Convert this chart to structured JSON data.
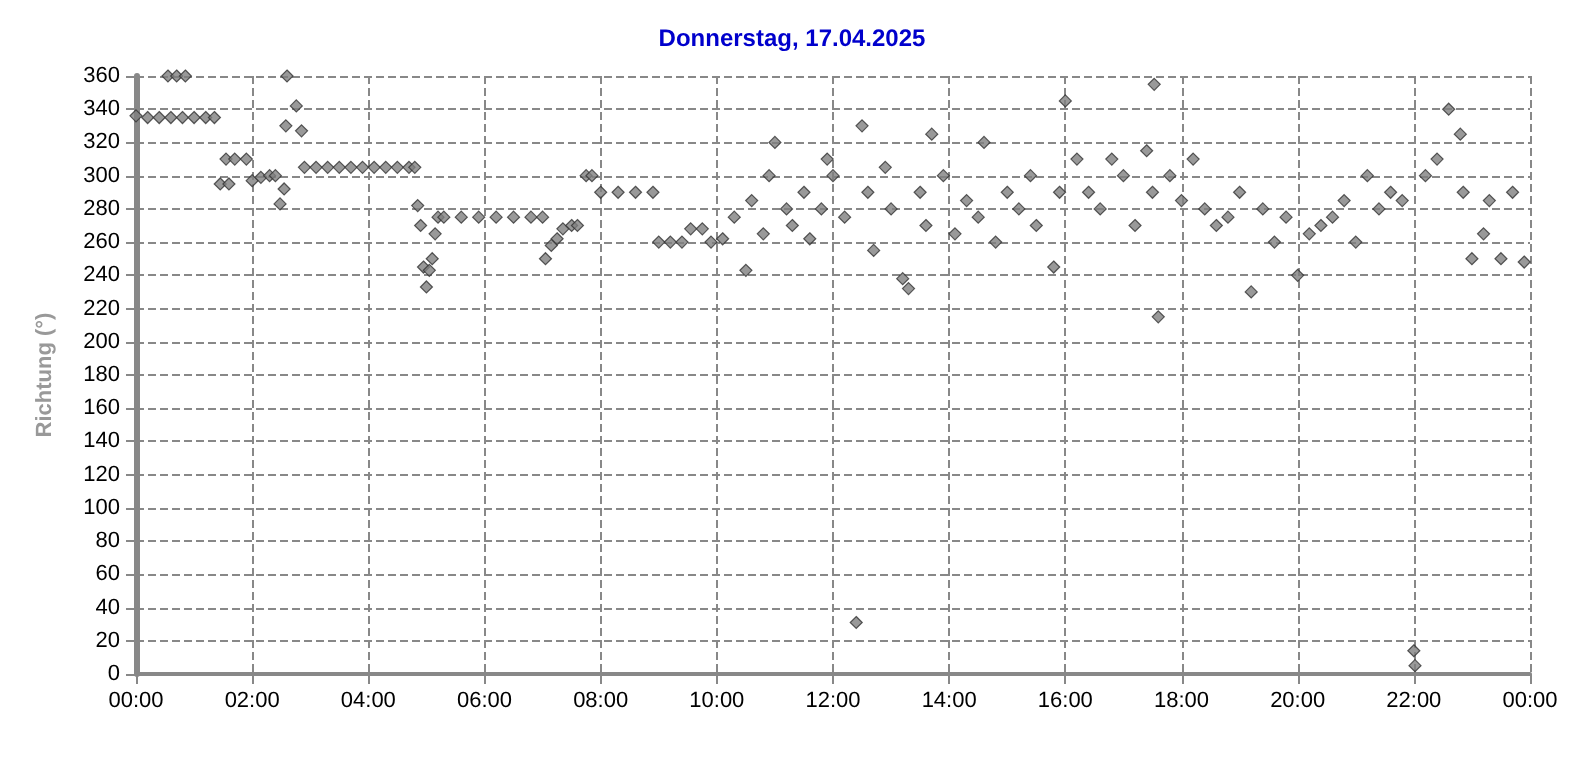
{
  "chart_data": {
    "type": "scatter",
    "title": "Donnerstag, 17.04.2025",
    "ylabel": "Richtung (°)",
    "marker": "diamond",
    "grid": true,
    "xlim": [
      0,
      24
    ],
    "xticks": [
      {
        "value": 0,
        "label": "00:00"
      },
      {
        "value": 2,
        "label": "02:00"
      },
      {
        "value": 4,
        "label": "04:00"
      },
      {
        "value": 6,
        "label": "06:00"
      },
      {
        "value": 8,
        "label": "08:00"
      },
      {
        "value": 10,
        "label": "10:00"
      },
      {
        "value": 12,
        "label": "12:00"
      },
      {
        "value": 14,
        "label": "14:00"
      },
      {
        "value": 16,
        "label": "16:00"
      },
      {
        "value": 18,
        "label": "18:00"
      },
      {
        "value": 20,
        "label": "20:00"
      },
      {
        "value": 22,
        "label": "22:00"
      },
      {
        "value": 24,
        "label": "00:00"
      }
    ],
    "ylim": [
      0,
      360
    ],
    "yticks": [
      0,
      20,
      40,
      60,
      80,
      100,
      120,
      140,
      160,
      180,
      200,
      220,
      240,
      260,
      280,
      300,
      320,
      340,
      360
    ],
    "series": [
      {
        "color": "#808080",
        "x": [
          0,
          0.2,
          0.4,
          0.6,
          0.8,
          1.0,
          1.2,
          1.35,
          0.55,
          0.7,
          0.85,
          1.45,
          1.6,
          1.55,
          1.7,
          1.9,
          2.0,
          2.15,
          2.3,
          2.4,
          2.48,
          2.55,
          2.58,
          2.6,
          2.76,
          2.85,
          2.9,
          3.1,
          3.3,
          3.5,
          3.7,
          3.9,
          4.1,
          4.3,
          4.5,
          4.7,
          4.8,
          4.85,
          4.9,
          4.95,
          5.0,
          5.05,
          5.1,
          5.15,
          5.2,
          5.3,
          5.6,
          5.9,
          6.2,
          6.5,
          6.8,
          7.0,
          7.05,
          7.15,
          7.25,
          7.35,
          7.5,
          7.6,
          7.75,
          7.85,
          8.0,
          8.3,
          8.6,
          8.9,
          9.0,
          9.2,
          9.4,
          9.55,
          9.75,
          9.9,
          10.1,
          10.3,
          10.5,
          10.6,
          10.8,
          10.9,
          11.0,
          11.2,
          11.3,
          11.5,
          11.6,
          11.8,
          11.9,
          12.0,
          12.2,
          12.4,
          12.5,
          12.6,
          12.7,
          12.9,
          13.0,
          13.2,
          13.3,
          13.5,
          13.6,
          13.7,
          13.9,
          14.1,
          14.3,
          14.5,
          14.6,
          14.8,
          15.0,
          15.2,
          15.4,
          15.5,
          15.8,
          15.9,
          16.0,
          16.2,
          16.4,
          16.6,
          16.8,
          17.0,
          17.2,
          17.4,
          17.5,
          17.53,
          17.6,
          17.8,
          18.0,
          18.2,
          18.4,
          18.6,
          18.8,
          19.0,
          19.2,
          19.4,
          19.6,
          19.8,
          20.0,
          20.2,
          20.4,
          20.6,
          20.8,
          21.0,
          21.2,
          21.4,
          21.6,
          21.8,
          22.0,
          22.02,
          22.2,
          22.4,
          22.6,
          22.8,
          22.85,
          23.0,
          23.2,
          23.3,
          23.5,
          23.7,
          23.9
        ],
        "values": [
          336,
          335,
          335,
          335,
          335,
          335,
          335,
          335,
          360,
          360,
          360,
          295,
          295,
          310,
          310,
          310,
          297,
          299,
          300,
          300,
          283,
          292,
          330,
          360,
          342,
          327,
          305,
          305,
          305,
          305,
          305,
          305,
          305,
          305,
          305,
          305,
          305,
          282,
          270,
          245,
          233,
          243,
          250,
          265,
          275,
          275,
          275,
          275,
          275,
          275,
          275,
          275,
          250,
          258,
          262,
          268,
          270,
          270,
          300,
          300,
          290,
          290,
          290,
          290,
          260,
          260,
          260,
          268,
          268,
          260,
          262,
          275,
          243,
          285,
          265,
          300,
          320,
          280,
          270,
          290,
          262,
          280,
          310,
          300,
          275,
          31,
          330,
          290,
          255,
          305,
          280,
          238,
          232,
          290,
          270,
          325,
          300,
          265,
          285,
          275,
          320,
          260,
          290,
          280,
          300,
          270,
          245,
          290,
          345,
          310,
          290,
          280,
          310,
          300,
          270,
          315,
          290,
          355,
          215,
          300,
          285,
          310,
          280,
          270,
          275,
          290,
          230,
          280,
          260,
          275,
          240,
          265,
          270,
          275,
          285,
          260,
          300,
          280,
          290,
          285,
          14,
          5,
          300,
          310,
          340,
          325,
          290,
          250,
          265,
          285,
          250,
          290,
          248
        ]
      }
    ]
  }
}
